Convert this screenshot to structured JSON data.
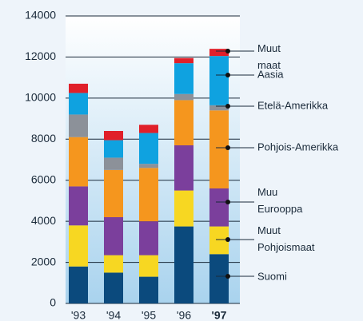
{
  "chart_data": {
    "type": "stacked_bar",
    "categories": [
      "'93",
      "'94",
      "'95",
      "'96",
      "'97"
    ],
    "series": [
      {
        "name": "Suomi",
        "color": "#0b4a7d",
        "values": [
          1800,
          1500,
          1300,
          3750,
          2400
        ]
      },
      {
        "name": "Muut Pohjoismaat",
        "color": "#f7d722",
        "values": [
          2000,
          850,
          1050,
          1750,
          1350
        ]
      },
      {
        "name": "Muu Eurooppa",
        "color": "#7b3f9c",
        "values": [
          1900,
          1850,
          1650,
          2200,
          1850
        ]
      },
      {
        "name": "Pohjois-Amerikka",
        "color": "#f5961e",
        "values": [
          2400,
          2300,
          2600,
          2200,
          3800
        ]
      },
      {
        "name": "Etelä-Amerikka",
        "color": "#8c9199",
        "values": [
          1100,
          600,
          200,
          300,
          250
        ]
      },
      {
        "name": "Aasia",
        "color": "#0fa2e0",
        "values": [
          1050,
          850,
          1500,
          1500,
          2400
        ]
      },
      {
        "name": "Muut maat",
        "color": "#e0202a",
        "values": [
          450,
          450,
          400,
          250,
          350
        ]
      }
    ],
    "ylim": [
      0,
      14000
    ],
    "yticks": [
      0,
      2000,
      4000,
      6000,
      8000,
      10000,
      12000,
      14000
    ],
    "grid": true
  }
}
